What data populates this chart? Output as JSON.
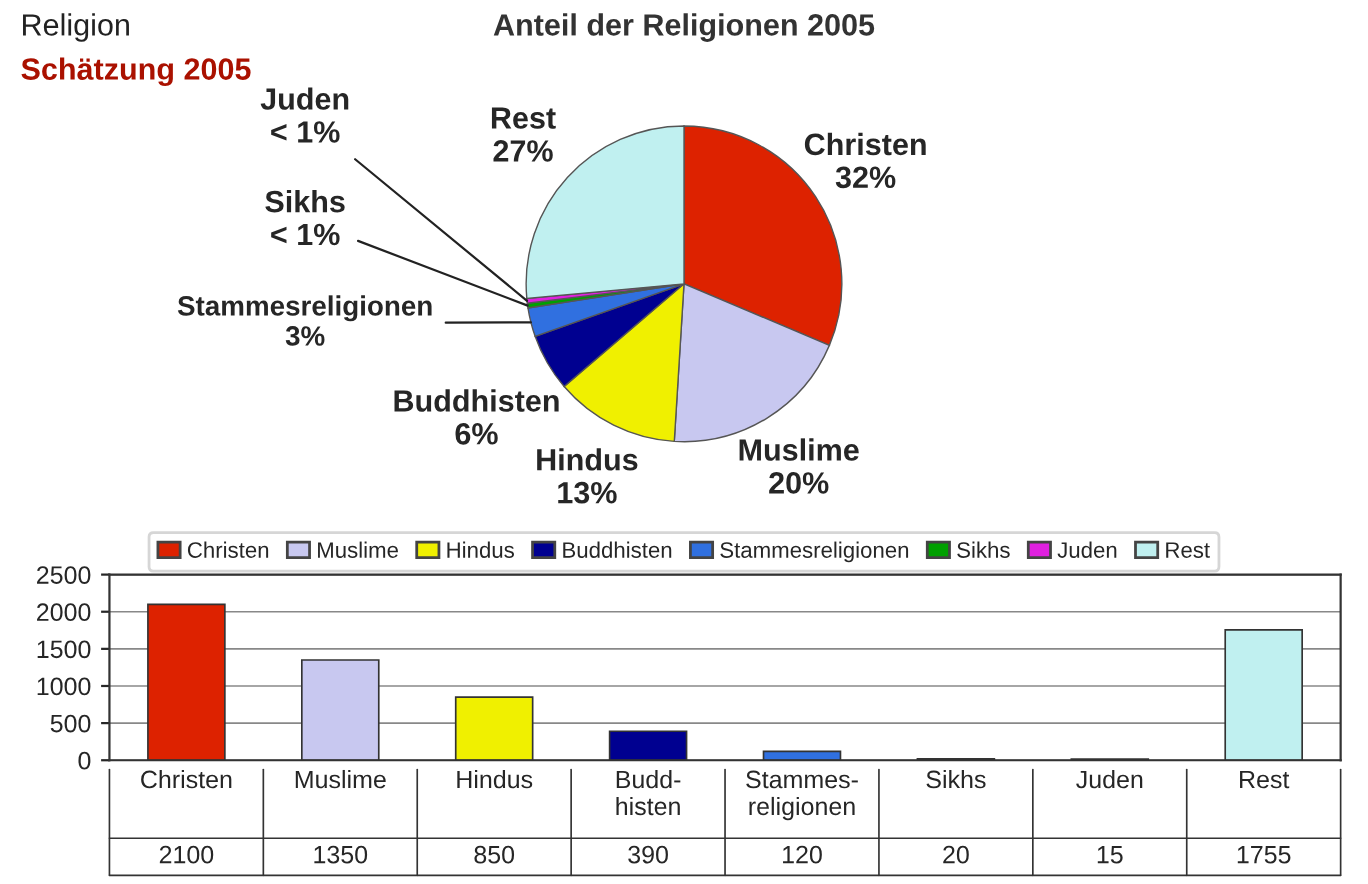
{
  "chart_data": [
    {
      "type": "pie",
      "title": "Anteil der Religionen 2005",
      "subtitle": "Schätzung 2005",
      "annotations": [
        "Religion"
      ],
      "categories": [
        "Christen",
        "Muslime",
        "Hindus",
        "Buddhisten",
        "Stammesreligionen",
        "Sikhs",
        "Juden",
        "Rest"
      ],
      "values": [
        32,
        20,
        13,
        6,
        3,
        0.5,
        0.5,
        27
      ],
      "value_labels": [
        "32%",
        "20%",
        "13%",
        "6%",
        "3%",
        "< 1%",
        "< 1%",
        "27%"
      ],
      "colors": [
        "#dd2200",
        "#c8c8f0",
        "#f0f000",
        "#000090",
        "#3070e0",
        "#00a000",
        "#e020e0",
        "#c0f0f0"
      ],
      "legend": "bottom"
    },
    {
      "type": "bar",
      "categories": [
        "Christen",
        "Muslime",
        "Hindus",
        "Budd-\nhisten",
        "Stammes-\nreligionen",
        "Sikhs",
        "Juden",
        "Rest"
      ],
      "values": [
        2100,
        1350,
        850,
        390,
        120,
        20,
        15,
        1755
      ],
      "colors": [
        "#dd2200",
        "#c8c8f0",
        "#f0f000",
        "#000090",
        "#3070e0",
        "#00a000",
        "#e020e0",
        "#c0f0f0"
      ],
      "ylim": [
        0,
        2500
      ],
      "yticks": [
        0,
        500,
        1000,
        1500,
        2000,
        2500
      ],
      "grid": "y",
      "data_labels": true
    }
  ]
}
